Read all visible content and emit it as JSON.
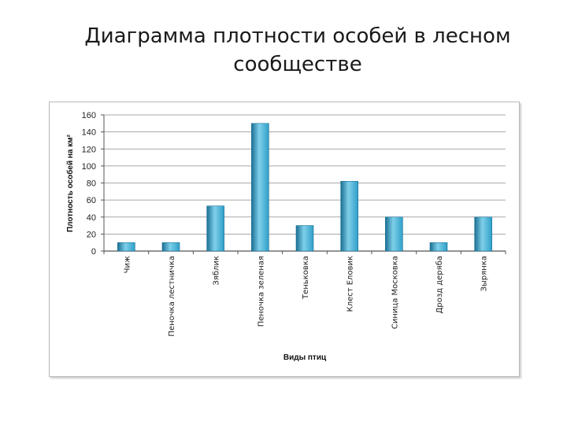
{
  "slide": {
    "title_line1": "Диаграмма плотности особей в лесном",
    "title_line2": "сообществе"
  },
  "chart_data": {
    "type": "bar",
    "categories": [
      "Чиж",
      "Пеночка лестничка",
      "Зяблик",
      "Пеночка зеленая",
      "Теньковка",
      "Клест Еловик",
      "Синица Московка",
      "Дрозд деряба",
      "Зырянка"
    ],
    "values": [
      10,
      10,
      53,
      150,
      30,
      82,
      40,
      10,
      40
    ],
    "xlabel": "Виды птиц",
    "ylabel": "Плотность особей на км²",
    "ylim": [
      0,
      160
    ],
    "yticks": [
      0,
      20,
      40,
      60,
      80,
      100,
      120,
      140,
      160
    ],
    "grid": true,
    "legend": "none",
    "colors": {
      "bar": "#2f9fc8",
      "bar_light": "#7fd0ea",
      "bar_dark": "#1a6f93",
      "grid": "#8c8c8c"
    }
  }
}
